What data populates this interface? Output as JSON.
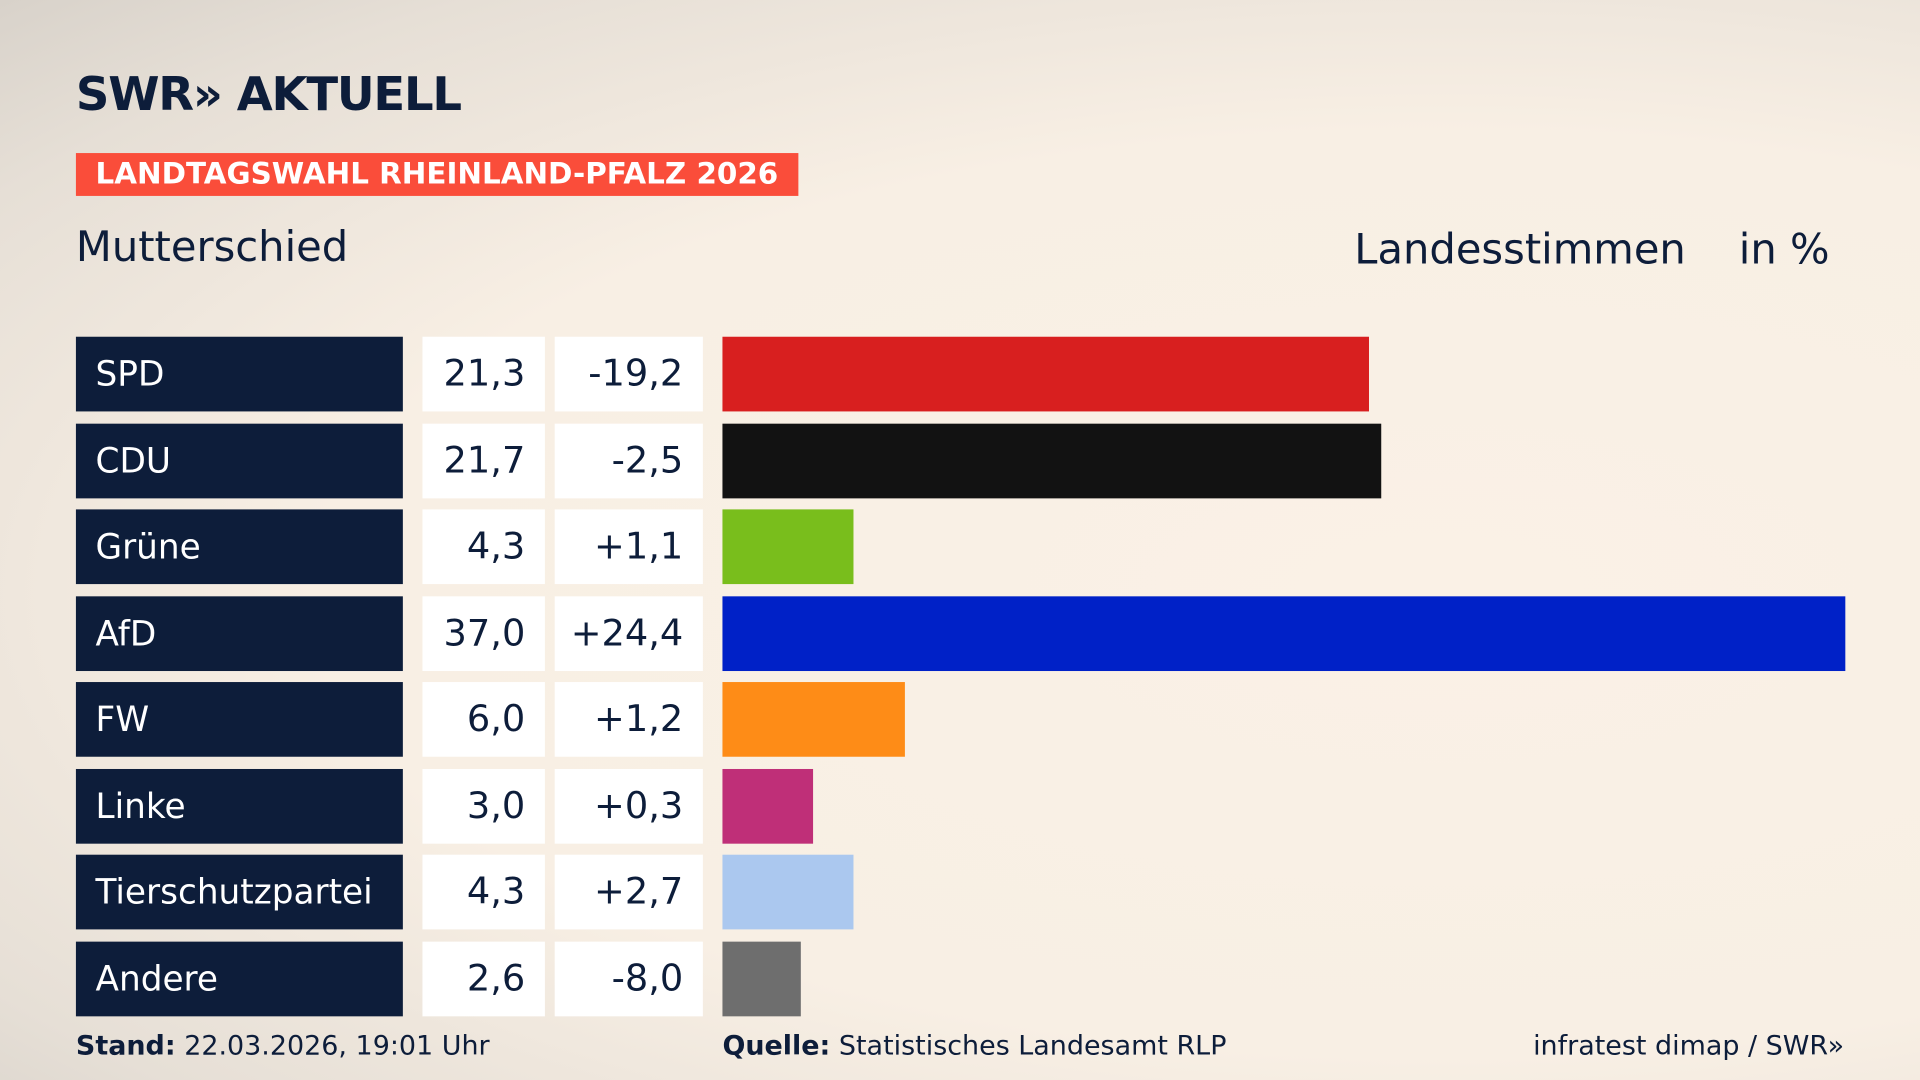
{
  "logo": "SWR» AKTUELL",
  "badge": "LANDTAGSWAHL RHEINLAND-PFALZ 2026",
  "location": "Mutterschied",
  "header_measure": "Landesstimmen",
  "header_unit": "in %",
  "footer": {
    "stand_label": "Stand:",
    "stand_value": "22.03.2026, 19:01 Uhr",
    "source_label": "Quelle:",
    "source_value": "Statistisches Landesamt RLP",
    "credit": "infratest dimap / SWR»"
  },
  "chart_data": {
    "type": "bar",
    "orientation": "horizontal",
    "xlim": [
      0,
      37
    ],
    "categories": [
      "SPD",
      "CDU",
      "Grüne",
      "AfD",
      "FW",
      "Linke",
      "Tierschutzpartei",
      "Andere"
    ],
    "values": [
      21.3,
      21.7,
      4.3,
      37.0,
      6.0,
      3.0,
      4.3,
      2.6
    ],
    "value_labels": [
      "21,3",
      "21,7",
      "4,3",
      "37,0",
      "6,0",
      "3,0",
      "4,3",
      "2,6"
    ],
    "diff_labels": [
      "-19,2",
      "-2,5",
      "+1,1",
      "+24,4",
      "+1,2",
      "+0,3",
      "+2,7",
      "-8,0"
    ],
    "colors": [
      "#d81f1f",
      "#121212",
      "#79be1c",
      "#0021c7",
      "#fe8c17",
      "#bf2f78",
      "#abc8ef",
      "#6e6e6e"
    ]
  }
}
